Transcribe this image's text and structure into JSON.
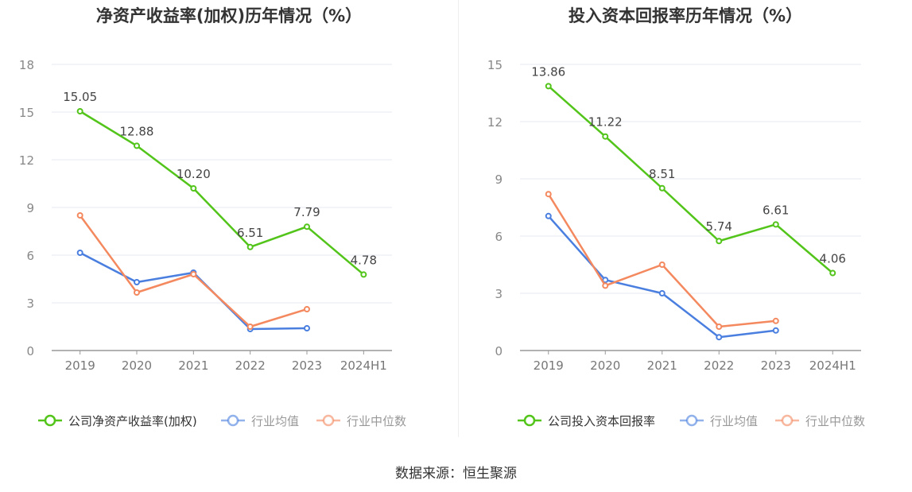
{
  "source": "数据来源：恒生聚源",
  "chart_data": [
    {
      "type": "line",
      "title": "净资产收益率(加权)历年情况（%）",
      "categories": [
        "2019",
        "2020",
        "2021",
        "2022",
        "2023",
        "2024H1"
      ],
      "ylim": [
        0,
        18
      ],
      "yticks": [
        0,
        3,
        6,
        9,
        12,
        15,
        18
      ],
      "grid": true,
      "legend_position": "bottom",
      "series": [
        {
          "name": "公司净资产收益率(加权)",
          "color": "#52c41a",
          "labels": true,
          "values": [
            15.05,
            12.88,
            10.2,
            6.51,
            7.79,
            4.78
          ],
          "value_labels": [
            "15.05",
            "12.88",
            "10.20",
            "6.51",
            "7.79",
            "4.78"
          ]
        },
        {
          "name": "行业均值",
          "color": "#4a7fe0",
          "labels": false,
          "values": [
            6.15,
            4.3,
            4.9,
            1.35,
            1.4,
            null
          ]
        },
        {
          "name": "行业中位数",
          "color": "#f4895f",
          "labels": false,
          "values": [
            8.5,
            3.65,
            4.8,
            1.5,
            2.6,
            null
          ]
        }
      ]
    },
    {
      "type": "line",
      "title": "投入资本回报率历年情况（%）",
      "categories": [
        "2019",
        "2020",
        "2021",
        "2022",
        "2023",
        "2024H1"
      ],
      "ylim": [
        0,
        15
      ],
      "yticks": [
        0,
        3,
        6,
        9,
        12,
        15
      ],
      "grid": true,
      "legend_position": "bottom",
      "series": [
        {
          "name": "公司投入资本回报率",
          "color": "#52c41a",
          "labels": true,
          "values": [
            13.86,
            11.22,
            8.51,
            5.74,
            6.61,
            4.06
          ],
          "value_labels": [
            "13.86",
            "11.22",
            "8.51",
            "5.74",
            "6.61",
            "4.06"
          ]
        },
        {
          "name": "行业均值",
          "color": "#4a7fe0",
          "labels": false,
          "values": [
            7.05,
            3.7,
            3.0,
            0.7,
            1.05,
            null
          ]
        },
        {
          "name": "行业中位数",
          "color": "#f4895f",
          "labels": false,
          "values": [
            8.2,
            3.4,
            4.5,
            1.25,
            1.55,
            null
          ]
        }
      ]
    }
  ]
}
